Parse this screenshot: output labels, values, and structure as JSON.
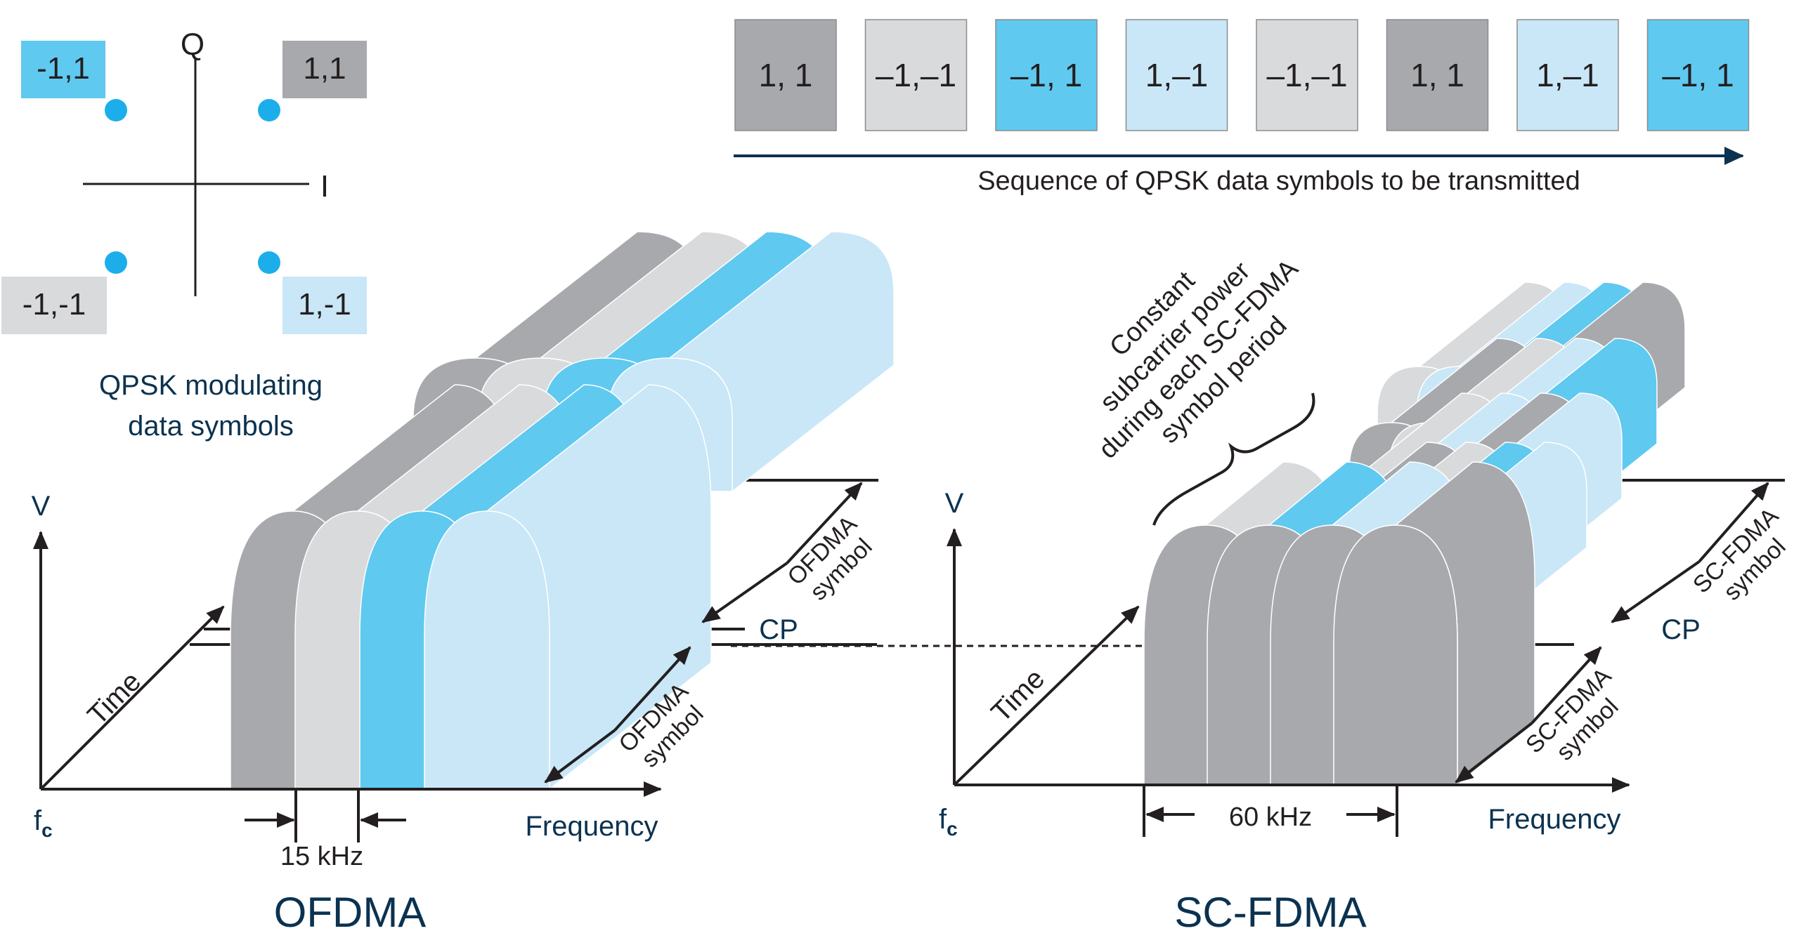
{
  "colors": {
    "dark_gray": "#A7A9AC",
    "light_gray": "#D9DADB",
    "blue": "#5FC9F0",
    "light_blue": "#C9E7F7",
    "axis": "#231F20",
    "navy": "#0B3250",
    "dot": "#1BAEEB"
  },
  "constellation": {
    "axis_q": "Q",
    "axis_i": "I",
    "points": [
      {
        "label": "-1,1",
        "color": "blue"
      },
      {
        "label": "1,1",
        "color": "dark_gray"
      },
      {
        "label": "-1,-1",
        "color": "light_gray"
      },
      {
        "label": "1,-1",
        "color": "light_blue"
      }
    ],
    "caption_line1": "QPSK modulating",
    "caption_line2": "data symbols"
  },
  "sequence": {
    "symbols": [
      {
        "label": "1, 1",
        "color": "dark_gray"
      },
      {
        "label": "–1,–1",
        "color": "light_gray"
      },
      {
        "label": "–1, 1",
        "color": "blue"
      },
      {
        "label": "1,–1",
        "color": "light_blue"
      },
      {
        "label": "–1,–1",
        "color": "light_gray"
      },
      {
        "label": "1, 1",
        "color": "dark_gray"
      },
      {
        "label": "1,–1",
        "color": "light_blue"
      },
      {
        "label": "–1, 1",
        "color": "blue"
      }
    ],
    "caption": "Sequence of QPSK data symbols to be transmitted"
  },
  "ofdma": {
    "title": "OFDMA",
    "v_label": "V",
    "fc_label": "f",
    "fc_sub": "c",
    "time_label": "Time",
    "frequency_label": "Frequency",
    "bandwidth_label": "15 kHz",
    "cp_label": "CP",
    "symbol_line1": "OFDMA",
    "symbol_line2": "symbol"
  },
  "scfdma": {
    "title": "SC-FDMA",
    "v_label": "V",
    "fc_label": "f",
    "fc_sub": "c",
    "time_label": "Time",
    "frequency_label": "Frequency",
    "bandwidth_label": "60 kHz",
    "cp_label": "CP",
    "symbol_line1": "SC-FDMA",
    "symbol_line2": "symbol",
    "annotation": [
      "Constant",
      "subcarrier power",
      "during each SC-FDMA",
      "symbol period"
    ]
  }
}
